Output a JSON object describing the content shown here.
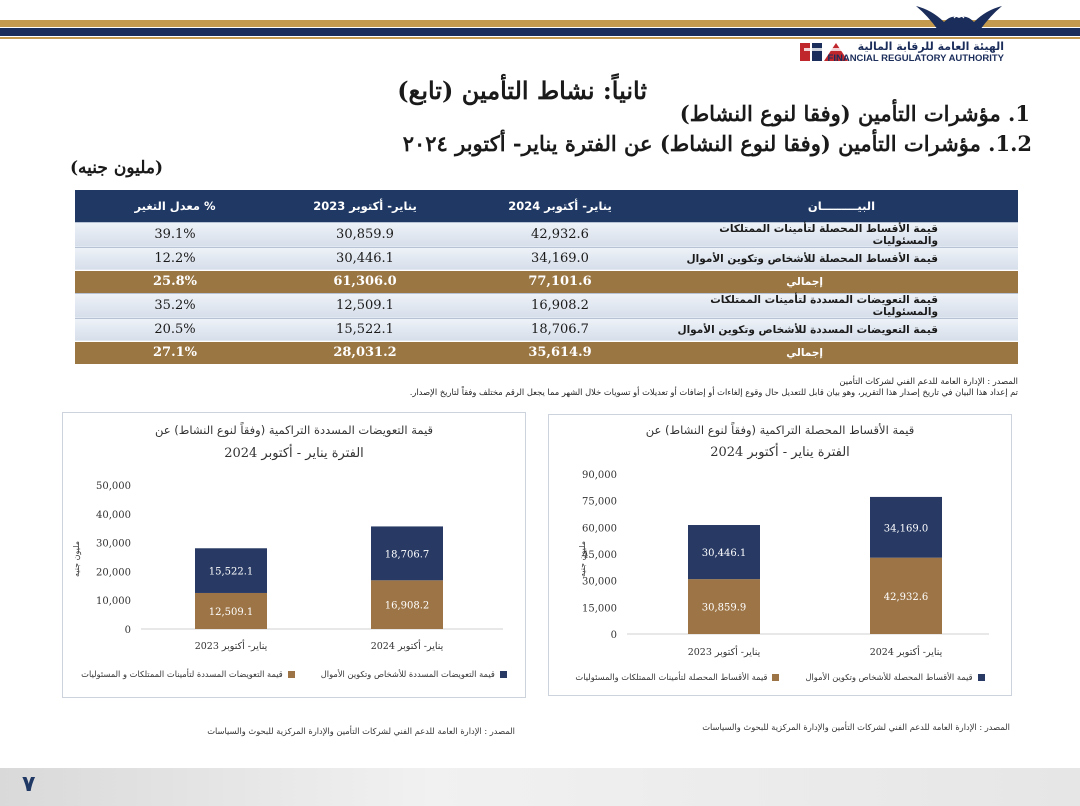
{
  "header": {
    "logo_ar": "الهيئة العامة للرقابة المالية",
    "logo_en": "FINANCIAL REGULATORY AUTHORITY",
    "logo_icon": "fra-logo-icon",
    "eagle_icon": "eagle-icon",
    "colors": {
      "navy": "#1f3864",
      "gold": "#b5883f",
      "brown": "#9a7643"
    }
  },
  "headings": {
    "section": "ثانياً: نشاط التأمين (تابع)",
    "h1": "1. مؤشرات التأمين (وفقا لنوع النشاط)",
    "h12": "1.2. مؤشرات التأمين (وفقا لنوع النشاط) عن الفترة يناير- أكتوبر ٢٠٢٤",
    "unit": "(مليون جنيه)"
  },
  "table": {
    "headers": [
      "البيـــــــــان",
      "يناير- أكتوبر 2024",
      "يناير- أكتوبر 2023",
      "معدل التغير %"
    ],
    "rows": [
      {
        "label": "قيمة الأقساط المحصلة لتأمينات الممتلكات والمسئوليات",
        "v2024": "42,932.6",
        "v2023": "30,859.9",
        "change": "39.1%",
        "total": false
      },
      {
        "label": "قيمة الأقساط المحصلة للأشخاص وتكوين الأموال",
        "v2024": "34,169.0",
        "v2023": "30,446.1",
        "change": "12.2%",
        "total": false
      },
      {
        "label": "إجمالي",
        "v2024": "77,101.6",
        "v2023": "61,306.0",
        "change": "25.8%",
        "total": true
      },
      {
        "label": "قيمة التعويضات المسددة لتأمينات الممتلكات والمسئوليات",
        "v2024": "16,908.2",
        "v2023": "12,509.1",
        "change": "35.2%",
        "total": false
      },
      {
        "label": "قيمة التعويضات المسددة للأشخاص وتكوين الأموال",
        "v2024": "18,706.7",
        "v2023": "15,522.1",
        "change": "20.5%",
        "total": false
      },
      {
        "label": "إجمالي",
        "v2024": "35,614.9",
        "v2023": "28,031.2",
        "change": "27.1%",
        "total": true
      }
    ]
  },
  "notes": {
    "line1": "المصدر : الإدارة العامة للدعم الفني لشركات التأمين",
    "line2": "تم إعداد هذا البيان في تاريخ إصدار هذا التقرير، وهو بيان قابل للتعديل حال وقوع إلغاءات أو إضافات أو تعديلات أو تسويات خلال الشهر مما يجعل الرقم مختلف وفقاً لتاريخ الإصدار."
  },
  "chart_data": [
    {
      "type": "bar",
      "stacked": true,
      "title": "قيمة التعويضات المسددة التراكمية (وفقاً لنوع النشاط) عن",
      "subtitle": "الفترة يناير - أكتوبر 2024",
      "ylabel": "مليون جنيه",
      "ylim": [
        0,
        50000
      ],
      "yticks": [
        "0",
        "10,000",
        "20,000",
        "30,000",
        "40,000",
        "50,000"
      ],
      "categories": [
        "يناير- أكتوبر 2023",
        "يناير- أكتوبر 2024"
      ],
      "series": [
        {
          "name": "قيمة التعويضات المسددة لتأمينات الممتلكات و المسئوليات",
          "color": "#9c7446",
          "values": [
            12509.1,
            16908.2
          ],
          "labels": [
            "12,509.1",
            "16,908.2"
          ]
        },
        {
          "name": "قيمة التعويضات المسددة للأشخاص وتكوين الأموال",
          "color": "#283a64",
          "values": [
            15522.1,
            18706.7
          ],
          "labels": [
            "15,522.1",
            "18,706.7"
          ]
        }
      ],
      "legend": "bottom",
      "source": "المصدر : الإدارة العامة للدعم الفني لشركات التأمين والإدارة المركزية للبحوث والسياسات"
    },
    {
      "type": "bar",
      "stacked": true,
      "title": "قيمة الأقساط المحصلة التراكمية (وفقاً لنوع النشاط) عن",
      "subtitle": "الفترة يناير - أكتوبر 2024",
      "ylabel": "مليون جنيه",
      "ylim": [
        0,
        90000
      ],
      "yticks": [
        "0",
        "15,000",
        "30,000",
        "45,000",
        "60,000",
        "75,000",
        "90,000"
      ],
      "categories": [
        "يناير- أكتوبر 2023",
        "يناير- أكتوبر 2024"
      ],
      "series": [
        {
          "name": "قيمة الأقساط المحصلة لتأمينات الممتلكات والمسئوليات",
          "color": "#9c7446",
          "values": [
            30859.9,
            42932.6
          ],
          "labels": [
            "30,859.9",
            "42,932.6"
          ]
        },
        {
          "name": "قيمة الأقساط المحصلة للأشخاص وتكوين الأموال",
          "color": "#283a64",
          "values": [
            30446.1,
            34169.0
          ],
          "labels": [
            "30,446.1",
            "34,169.0"
          ]
        }
      ],
      "legend": "bottom",
      "source": "المصدر : الإدارة العامة للدعم الفني لشركات التأمين والإدارة المركزية للبحوث والسياسات"
    }
  ],
  "footer": {
    "page_number": "٧"
  }
}
